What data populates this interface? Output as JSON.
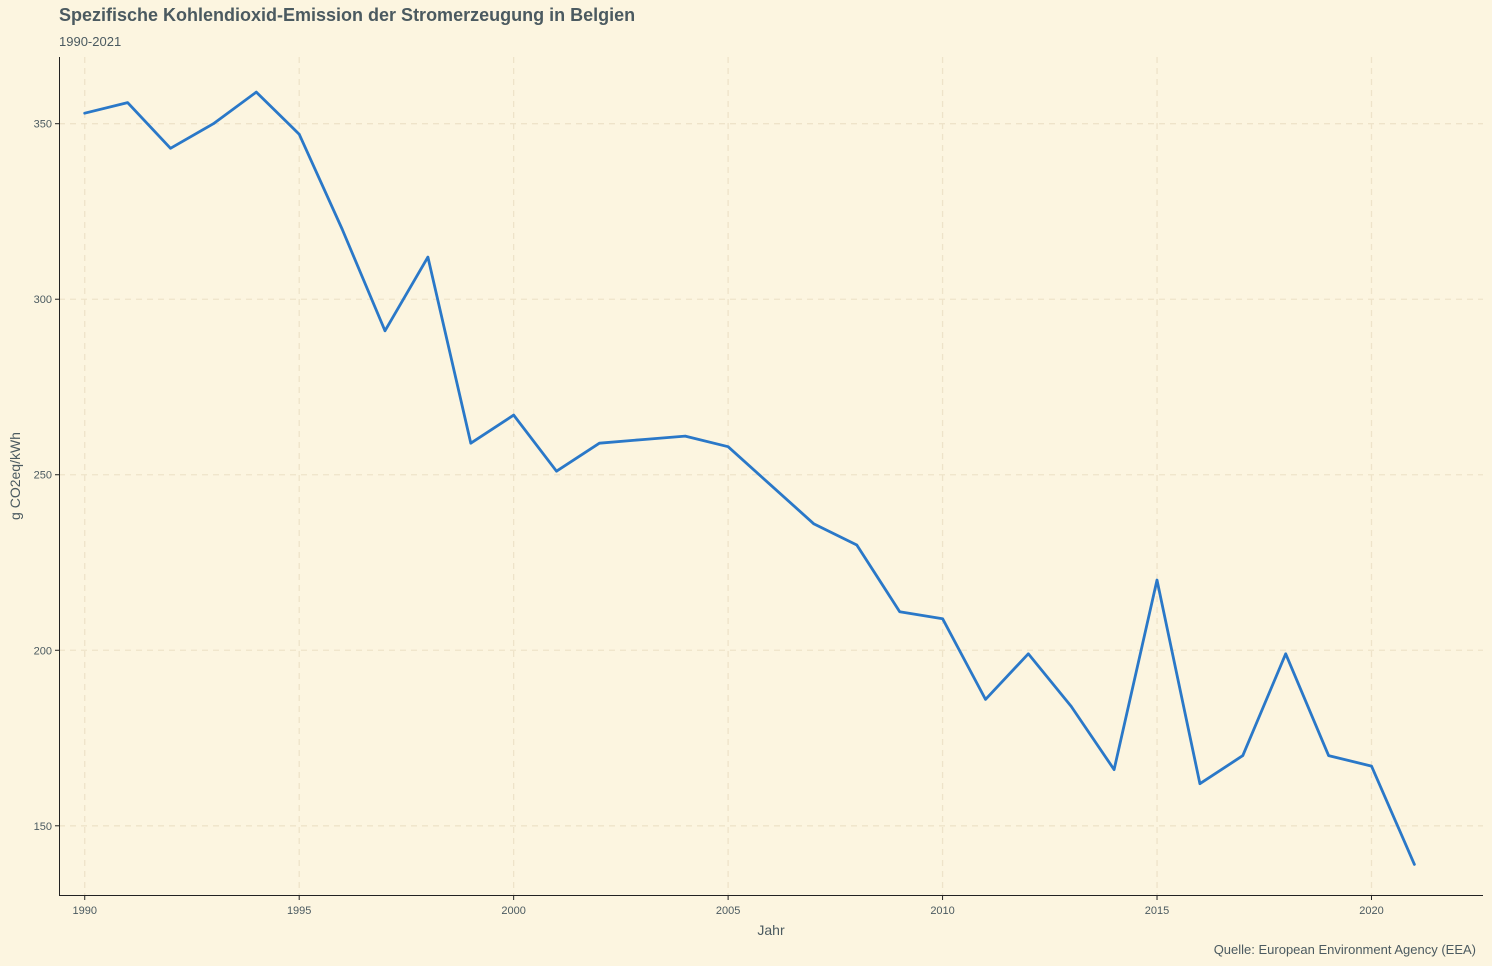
{
  "chart_data": {
    "type": "line",
    "title": "Spezifische Kohlendioxid-Emission der Stromerzeugung in Belgien",
    "subtitle": "1990-2021",
    "xlabel": "Jahr",
    "ylabel": "g CO2eq/kWh",
    "source": "Quelle: European Environment Agency (EEA)",
    "xlim": [
      1989.4,
      2022.6
    ],
    "ylim": [
      130,
      369
    ],
    "x_ticks": [
      1990,
      1995,
      2000,
      2005,
      2010,
      2015,
      2020
    ],
    "y_ticks": [
      150,
      200,
      250,
      300,
      350
    ],
    "grid": true,
    "line_color": "#2a78c8",
    "series": [
      {
        "x": [
          1990,
          1991,
          1992,
          1993,
          1994,
          1995,
          1996,
          1997,
          1998,
          1999,
          2000,
          2001,
          2002,
          2003,
          2004,
          2005,
          2006,
          2007,
          2008,
          2009,
          2010,
          2011,
          2012,
          2013,
          2014,
          2015,
          2016,
          2017,
          2018,
          2019,
          2020,
          2021
        ],
        "values": [
          353,
          356,
          343,
          350,
          359,
          347,
          320,
          291,
          312,
          259,
          267,
          251,
          259,
          260,
          261,
          258,
          247,
          236,
          230,
          211,
          209,
          186,
          199,
          184,
          166,
          220,
          162,
          170,
          199,
          170,
          167,
          139
        ]
      }
    ]
  }
}
